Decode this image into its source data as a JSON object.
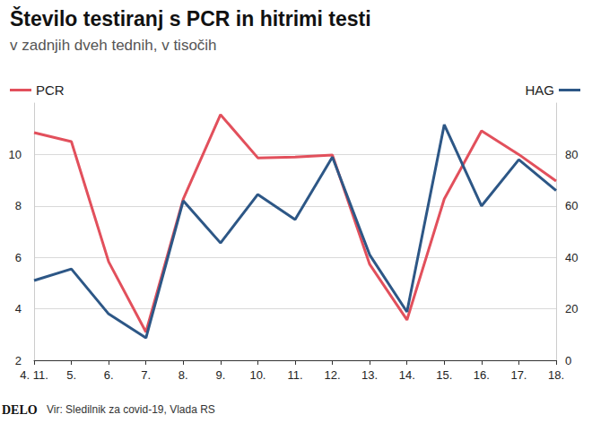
{
  "chart_data": {
    "type": "line",
    "title": "Število testiranj s PCR in hitrimi testi",
    "subtitle": "v zadnjih dveh tednih, v tisočih",
    "source": "Vir: Sledilnik za covid-19, Vlada RS",
    "logo": "DELO",
    "categories": [
      "4. 11.",
      "5.",
      "6.",
      "7.",
      "8.",
      "9.",
      "10.",
      "11.",
      "12.",
      "13.",
      "14.",
      "15.",
      "16.",
      "17.",
      "18."
    ],
    "series": [
      {
        "name": "PCR",
        "color": "#e2505c",
        "values": [
          10.85,
          10.5,
          5.83,
          3.1,
          8.27,
          11.55,
          9.87,
          9.9,
          9.98,
          5.73,
          3.57,
          8.27,
          10.92,
          10.0,
          8.97
        ]
      },
      {
        "name": "HAG",
        "color": "#2d5786",
        "axis": "y2",
        "values": [
          31,
          35.5,
          18,
          8.7,
          62,
          45.6,
          64.5,
          54.7,
          79,
          41,
          18.8,
          91.6,
          60,
          78,
          66
        ]
      }
    ],
    "ylim": [
      2,
      12
    ],
    "yticks": [
      2,
      4,
      6,
      8,
      10
    ],
    "y2lim": [
      0,
      100
    ],
    "y2ticks": [
      0,
      20,
      40,
      60,
      80
    ],
    "grid": true,
    "legend": "top"
  }
}
